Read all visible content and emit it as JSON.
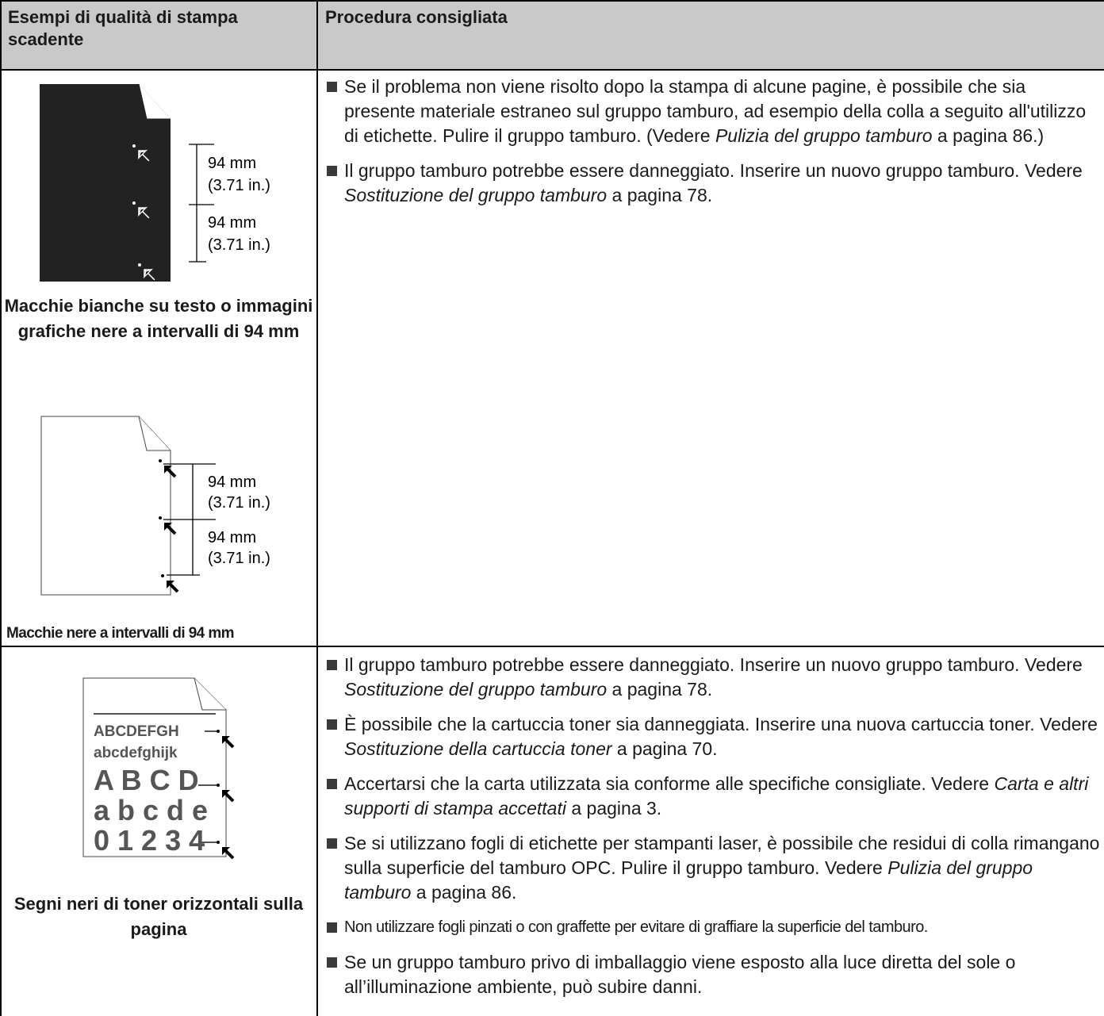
{
  "table": {
    "headers": [
      "Esempi di qualità di stampa scadente",
      "Procedura consigliata"
    ],
    "rows": [
      {
        "figures": [
          {
            "labels": [
              "94 mm",
              "(3.71 in.)",
              "94 mm",
              "(3.71 in.)"
            ],
            "caption": "Macchie bianche su testo o immagini grafiche nere a intervalli di 94 mm"
          },
          {
            "labels": [
              "94 mm",
              "(3.71 in.)",
              "94 mm",
              "(3.71 in.)"
            ],
            "caption": "Macchie nere a intervalli di 94 mm"
          }
        ],
        "items": [
          [
            {
              "text": "Se il problema non viene risolto dopo la stampa di alcune pagine, è possibile che sia presente materiale estraneo sul gruppo tamburo, ad esempio della colla a seguito all'utilizzo di etichette. Pulire il gruppo tamburo. (Vedere "
            },
            {
              "text": "Pulizia del gruppo tamburo",
              "italic": true
            },
            {
              "text": " a pagina 86.)"
            }
          ],
          [
            {
              "text": "Il gruppo tamburo potrebbe essere danneggiato. Inserire un nuovo gruppo tamburo. Vedere "
            },
            {
              "text": "Sostituzione del gruppo tamburo",
              "italic": true
            },
            {
              "text": " a pagina 78."
            }
          ]
        ]
      },
      {
        "figures": [
          {
            "sample_lines": [
              "ABCDEFGH",
              "abcdefghijk",
              "A B C D",
              "a b c d e",
              "0 1 2 3 4"
            ],
            "caption": "Segni neri di toner orizzontali sulla pagina"
          }
        ],
        "items": [
          [
            {
              "text": "Il gruppo tamburo potrebbe essere danneggiato. Inserire un nuovo gruppo tamburo. Vedere "
            },
            {
              "text": "Sostituzione del gruppo tamburo",
              "italic": true
            },
            {
              "text": " a pagina 78."
            }
          ],
          [
            {
              "text": "È possibile che la cartuccia toner sia danneggiata. Inserire una nuova cartuccia toner. Vedere "
            },
            {
              "text": "Sostituzione della cartuccia toner",
              "italic": true
            },
            {
              "text": " a pagina 70."
            }
          ],
          [
            {
              "text": "Accertarsi che la carta utilizzata sia conforme alle specifiche consigliate. Vedere "
            },
            {
              "text": "Carta e altri supporti di stampa accettati",
              "italic": true
            },
            {
              "text": " a pagina 3."
            }
          ],
          [
            {
              "text": "Se si utilizzano fogli di etichette per stampanti laser, è possibile che residui di colla rimangano sulla superficie del tamburo OPC. Pulire il gruppo tamburo. Vedere "
            },
            {
              "text": "Pulizia del gruppo tamburo",
              "italic": true
            },
            {
              "text": " a pagina 86."
            }
          ],
          [
            {
              "text": "Non utilizzare fogli pinzati o con graffette per evitare di graffiare la superficie del tamburo."
            }
          ],
          [
            {
              "text": "Se un gruppo tamburo privo di imballaggio viene esposto alla luce diretta del sole o all’illuminazione ambiente, può subire danni."
            }
          ]
        ]
      }
    ]
  }
}
